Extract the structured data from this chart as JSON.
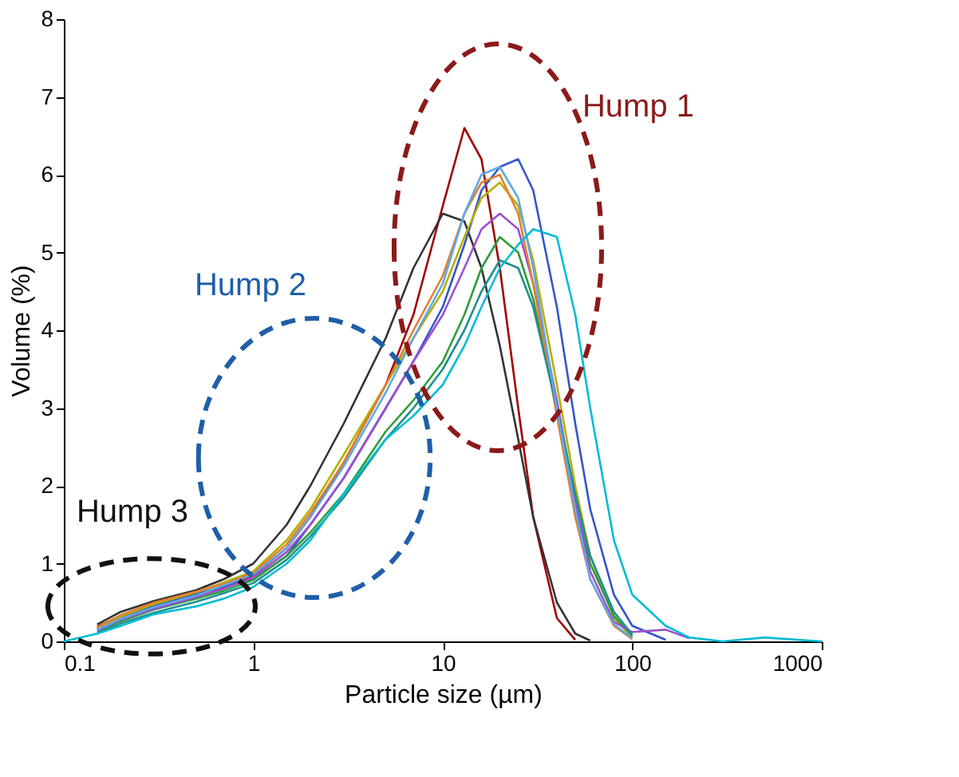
{
  "chart_data": {
    "type": "line",
    "xlabel": "Particle size (µm)",
    "ylabel": "Volume (%)",
    "log": "x",
    "xlim": [
      0.1,
      1000
    ],
    "xticks": [
      0.1,
      1,
      10,
      100,
      1000
    ],
    "ylim": [
      0,
      8
    ],
    "yticks": [
      0,
      1,
      2,
      3,
      4,
      5,
      6,
      7,
      8
    ],
    "grid": false,
    "legend": false,
    "marker": "none",
    "line_style": "solid",
    "x": [
      0.1,
      0.15,
      0.2,
      0.3,
      0.5,
      0.7,
      1,
      1.5,
      2,
      3,
      5,
      7,
      10,
      13,
      16,
      20,
      25,
      30,
      40,
      50,
      60,
      80,
      100,
      150,
      200,
      300,
      500,
      1000
    ],
    "series": [
      {
        "color": "#a00000",
        "values": [
          null,
          0.19,
          0.33,
          0.47,
          0.6,
          0.7,
          0.85,
          1.2,
          1.6,
          2.3,
          3.3,
          4.2,
          5.6,
          6.6,
          6.2,
          4.8,
          3.0,
          1.6,
          0.3,
          0.02,
          null,
          null,
          null,
          null,
          null,
          null,
          null,
          null
        ]
      },
      {
        "color": "#333333",
        "values": [
          null,
          0.22,
          0.38,
          0.52,
          0.66,
          0.8,
          1.0,
          1.5,
          2.0,
          2.8,
          3.9,
          4.8,
          5.5,
          5.4,
          4.8,
          3.8,
          2.6,
          1.6,
          0.5,
          0.1,
          0.01,
          null,
          null,
          null,
          null,
          null,
          null,
          null
        ]
      },
      {
        "color": "#3355cc",
        "values": [
          null,
          0.16,
          0.31,
          0.46,
          0.61,
          0.71,
          0.8,
          1.1,
          1.5,
          2.1,
          3.0,
          3.6,
          4.3,
          5.1,
          5.8,
          6.1,
          6.2,
          5.8,
          4.3,
          2.8,
          1.7,
          0.6,
          0.2,
          0.02,
          null,
          null,
          null,
          null
        ]
      },
      {
        "color": "#b5b000",
        "values": [
          null,
          0.17,
          0.32,
          0.48,
          0.63,
          0.76,
          0.9,
          1.3,
          1.7,
          2.4,
          3.3,
          3.9,
          4.5,
          5.2,
          5.7,
          5.9,
          5.6,
          4.9,
          3.3,
          2.0,
          1.1,
          0.3,
          0.05,
          null,
          null,
          null,
          null,
          null
        ]
      },
      {
        "color": "#2e9e3a",
        "values": [
          null,
          0.13,
          0.26,
          0.41,
          0.55,
          0.65,
          0.79,
          1.1,
          1.4,
          1.9,
          2.7,
          3.1,
          3.6,
          4.2,
          4.8,
          5.2,
          5.0,
          4.4,
          3.0,
          1.8,
          1.0,
          0.33,
          0.07,
          null,
          null,
          null,
          null,
          null
        ]
      },
      {
        "color": "#9b4fd0",
        "values": [
          null,
          0.14,
          0.28,
          0.42,
          0.57,
          0.68,
          0.82,
          1.15,
          1.5,
          2.1,
          3.0,
          3.6,
          4.2,
          4.8,
          5.3,
          5.5,
          5.3,
          4.6,
          3.1,
          1.8,
          0.9,
          0.25,
          0.12,
          0.15,
          0.04,
          null,
          null,
          null
        ]
      },
      {
        "color": "#e08030",
        "values": [
          null,
          0.18,
          0.34,
          0.5,
          0.64,
          0.74,
          0.88,
          1.25,
          1.65,
          2.3,
          3.3,
          4.0,
          4.7,
          5.5,
          5.9,
          6.0,
          5.5,
          4.6,
          2.9,
          1.6,
          0.8,
          0.2,
          0.03,
          null,
          null,
          null,
          null,
          null
        ]
      },
      {
        "color": "#1f8f8f",
        "values": [
          null,
          0.11,
          0.23,
          0.37,
          0.51,
          0.62,
          0.75,
          1.05,
          1.35,
          1.85,
          2.6,
          3.0,
          3.5,
          4.0,
          4.5,
          4.9,
          4.8,
          4.3,
          3.0,
          1.9,
          1.1,
          0.38,
          0.09,
          null,
          null,
          null,
          null,
          null
        ]
      },
      {
        "color": "#5fa8e8",
        "values": [
          null,
          0.15,
          0.29,
          0.44,
          0.59,
          0.72,
          0.86,
          1.2,
          1.6,
          2.25,
          3.2,
          3.9,
          4.6,
          5.5,
          6.0,
          6.1,
          5.7,
          4.8,
          3.0,
          1.7,
          0.8,
          0.22,
          0.04,
          null,
          null,
          null,
          null,
          null
        ]
      },
      {
        "color": "#00bcd4",
        "values": [
          0,
          0.1,
          0.2,
          0.35,
          0.45,
          0.55,
          0.7,
          1.0,
          1.3,
          1.9,
          2.6,
          2.9,
          3.3,
          3.8,
          4.3,
          4.8,
          5.1,
          5.3,
          5.2,
          4.2,
          3.0,
          1.3,
          0.6,
          0.2,
          0.05,
          0,
          0.05,
          0
        ]
      }
    ],
    "annotations": [
      "Hump 1",
      "Hump 2",
      "Hump 3"
    ]
  }
}
